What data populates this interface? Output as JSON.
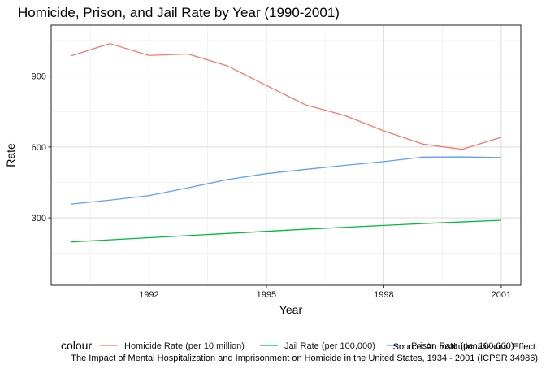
{
  "chart_data": {
    "type": "line",
    "title": "Homicide, Prison, and Jail Rate by Year (1990-2001)",
    "xlabel": "Year",
    "ylabel": "Rate",
    "xlim": [
      1989.5,
      2001.5
    ],
    "ylim": [
      15,
      1115
    ],
    "x_ticks": [
      1992,
      1995,
      1998,
      2001
    ],
    "y_ticks": [
      300,
      600,
      900
    ],
    "grid": true,
    "legend_position": "bottom",
    "legend_title": "colour",
    "caption": [
      "Source: An Institutionalization Effect:",
      "The Impact of Mental Hospitalization and Imprisonment on Homicide in the United States, 1934 - 2001 (ICPSR 34986)"
    ],
    "x": [
      1990,
      1991,
      1992,
      1993,
      1994,
      1995,
      1996,
      1997,
      1998,
      1999,
      2000,
      2001
    ],
    "series": [
      {
        "name": "Homicide Rate (per 10 million)",
        "color": "#F8766D",
        "values": [
          985,
          1037,
          987,
          993,
          943,
          860,
          778,
          733,
          668,
          612,
          590,
          641
        ]
      },
      {
        "name": "Jail Rate (per 100,000)",
        "color": "#00BA38",
        "values": [
          198,
          207,
          216,
          225,
          234,
          243,
          252,
          260,
          268,
          276,
          283,
          290
        ]
      },
      {
        "name": "Prison Rate (per 100,000)",
        "color": "#619CFF",
        "values": [
          358,
          375,
          394,
          427,
          462,
          487,
          505,
          522,
          538,
          557,
          558,
          555
        ]
      }
    ]
  }
}
